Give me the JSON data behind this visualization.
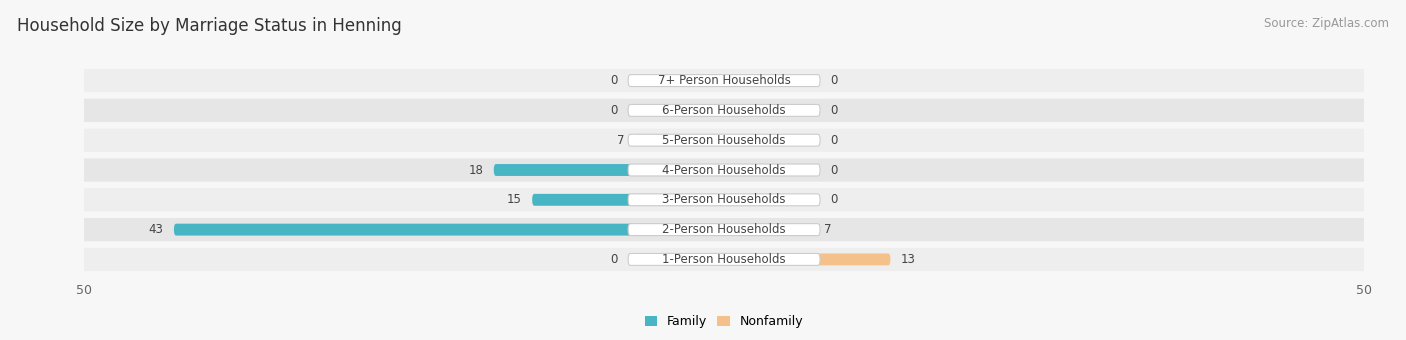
{
  "title": "Household Size by Marriage Status in Henning",
  "source": "Source: ZipAtlas.com",
  "categories": [
    "7+ Person Households",
    "6-Person Households",
    "5-Person Households",
    "4-Person Households",
    "3-Person Households",
    "2-Person Households",
    "1-Person Households"
  ],
  "family_values": [
    0,
    0,
    7,
    18,
    15,
    43,
    0
  ],
  "nonfamily_values": [
    0,
    0,
    0,
    0,
    0,
    7,
    13
  ],
  "family_color": "#48B5C4",
  "nonfamily_color": "#F5C18A",
  "axis_limit": 50,
  "background_color": "#f7f7f7",
  "row_bg_even": "#eeeeee",
  "row_bg_odd": "#e6e6e6",
  "label_bg_color": "#ffffff",
  "title_fontsize": 12,
  "source_fontsize": 8.5,
  "label_fontsize": 8.5,
  "value_fontsize": 8.5
}
